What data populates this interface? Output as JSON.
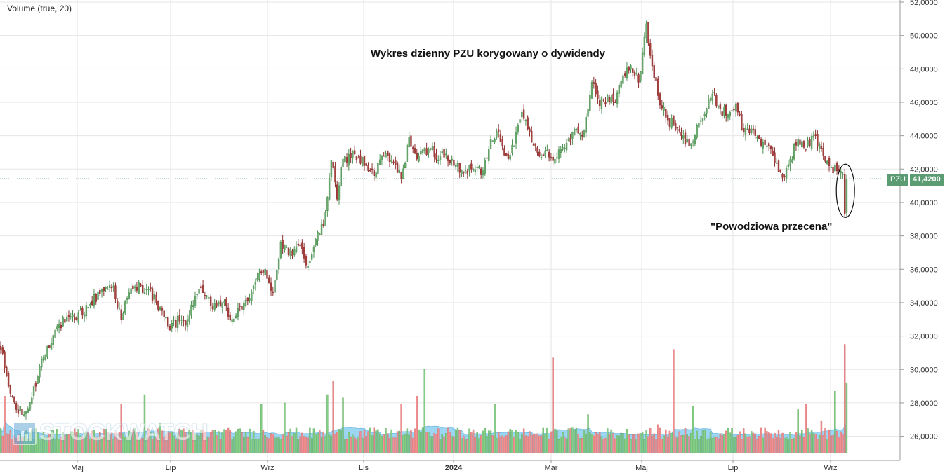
{
  "indicator_label": "Volume (true, 20)",
  "watermark": "STOCKWATCH",
  "annotations": {
    "title": "Wykres dzienny PZU korygowany o dywidendy",
    "flood": "\"Powodziowa przecena\""
  },
  "price_tag": {
    "symbol": "PZU",
    "value": "41,4200"
  },
  "colors": {
    "up": "#4c8f52",
    "down": "#8b2e2e",
    "up_fill": "#6aab6e",
    "down_fill": "#a9423e",
    "vol_up": "#86cf86",
    "vol_down": "#f09090",
    "vol_ma": "#7cc8ee",
    "grid": "#e6e6e6",
    "last_line": "#5c9c72"
  },
  "chart_data": {
    "type": "candlestick",
    "y_axis": {
      "ticks": [
        "52,0000",
        "50,0000",
        "48,0000",
        "46,0000",
        "44,0000",
        "42,0000",
        "40,0000",
        "38,0000",
        "36,0000",
        "34,0000",
        "32,0000",
        "30,0000",
        "28,0000",
        "26,0000"
      ],
      "ylim": [
        25.0,
        52.0
      ]
    },
    "x_axis": {
      "ticks": [
        "Maj",
        "Lip",
        "Wrz",
        "Lis",
        "2024",
        "Mar",
        "Maj",
        "Lip",
        "Wrz"
      ],
      "bold_ticks": [
        "2024"
      ]
    },
    "last_price": 41.42,
    "price_path_anchors": [
      [
        0,
        31.2
      ],
      [
        4,
        29.0
      ],
      [
        8,
        27.6
      ],
      [
        12,
        27.3
      ],
      [
        16,
        28.3
      ],
      [
        20,
        30.2
      ],
      [
        24,
        31.4
      ],
      [
        30,
        32.7
      ],
      [
        38,
        33.0
      ],
      [
        46,
        33.9
      ],
      [
        52,
        34.8
      ],
      [
        58,
        35.0
      ],
      [
        62,
        33.0
      ],
      [
        66,
        34.6
      ],
      [
        72,
        35.0
      ],
      [
        76,
        34.8
      ],
      [
        80,
        34.0
      ],
      [
        86,
        32.6
      ],
      [
        92,
        32.9
      ],
      [
        96,
        33.0
      ],
      [
        100,
        34.4
      ],
      [
        104,
        34.6
      ],
      [
        108,
        33.8
      ],
      [
        114,
        34.0
      ],
      [
        118,
        33.0
      ],
      [
        124,
        33.6
      ],
      [
        130,
        35.0
      ],
      [
        136,
        36.0
      ],
      [
        140,
        34.6
      ],
      [
        144,
        37.6
      ],
      [
        150,
        36.8
      ],
      [
        154,
        37.4
      ],
      [
        158,
        36.2
      ],
      [
        162,
        37.8
      ],
      [
        166,
        38.6
      ],
      [
        170,
        42.5
      ],
      [
        173,
        40.2
      ],
      [
        176,
        42.6
      ],
      [
        182,
        42.9
      ],
      [
        188,
        42.2
      ],
      [
        192,
        41.6
      ],
      [
        196,
        42.8
      ],
      [
        202,
        42.4
      ],
      [
        206,
        41.4
      ],
      [
        210,
        43.9
      ],
      [
        214,
        42.6
      ],
      [
        220,
        43.2
      ],
      [
        226,
        42.8
      ],
      [
        232,
        42.6
      ],
      [
        236,
        41.8
      ],
      [
        242,
        42.0
      ],
      [
        248,
        41.9
      ],
      [
        252,
        43.8
      ],
      [
        256,
        44.2
      ],
      [
        260,
        42.8
      ],
      [
        264,
        43.4
      ],
      [
        268,
        45.4
      ],
      [
        272,
        44.2
      ],
      [
        276,
        43.0
      ],
      [
        280,
        43.1
      ],
      [
        284,
        42.5
      ],
      [
        288,
        43.2
      ],
      [
        292,
        43.8
      ],
      [
        296,
        44.4
      ],
      [
        300,
        44.3
      ],
      [
        304,
        47.2
      ],
      [
        308,
        45.8
      ],
      [
        312,
        46.4
      ],
      [
        316,
        46.0
      ],
      [
        320,
        47.6
      ],
      [
        324,
        48.2
      ],
      [
        328,
        47.2
      ],
      [
        332,
        50.7
      ],
      [
        334,
        48.8
      ],
      [
        338,
        46.4
      ],
      [
        342,
        45.1
      ],
      [
        346,
        44.6
      ],
      [
        350,
        44.0
      ],
      [
        354,
        43.4
      ],
      [
        358,
        44.6
      ],
      [
        362,
        45.3
      ],
      [
        366,
        46.5
      ],
      [
        370,
        45.6
      ],
      [
        374,
        45.3
      ],
      [
        378,
        45.9
      ],
      [
        382,
        44.2
      ],
      [
        386,
        44.4
      ],
      [
        390,
        43.8
      ],
      [
        394,
        43.4
      ],
      [
        398,
        42.4
      ],
      [
        402,
        41.5
      ],
      [
        406,
        42.6
      ],
      [
        410,
        43.8
      ],
      [
        414,
        43.2
      ],
      [
        418,
        44.0
      ],
      [
        422,
        43.2
      ],
      [
        426,
        42.2
      ],
      [
        430,
        41.9
      ],
      [
        433,
        41.7
      ],
      [
        434,
        39.3
      ],
      [
        435,
        41.42
      ]
    ],
    "volume_spikes": [
      [
        2,
        28.4
      ],
      [
        62,
        27.9
      ],
      [
        74,
        28.5
      ],
      [
        82,
        26.8
      ],
      [
        134,
        27.9
      ],
      [
        146,
        28.0
      ],
      [
        168,
        28.5
      ],
      [
        171,
        29.3
      ],
      [
        176,
        28.3
      ],
      [
        206,
        27.9
      ],
      [
        214,
        28.4
      ],
      [
        218,
        30.0
      ],
      [
        254,
        27.9
      ],
      [
        284,
        30.7
      ],
      [
        294,
        26.5
      ],
      [
        302,
        27.3
      ],
      [
        338,
        26.7
      ],
      [
        346,
        31.2
      ],
      [
        356,
        27.8
      ],
      [
        386,
        26.3
      ],
      [
        410,
        27.6
      ],
      [
        414,
        27.9
      ],
      [
        422,
        26.9
      ],
      [
        429,
        28.7
      ],
      [
        434,
        31.5
      ],
      [
        435,
        29.2
      ]
    ]
  }
}
